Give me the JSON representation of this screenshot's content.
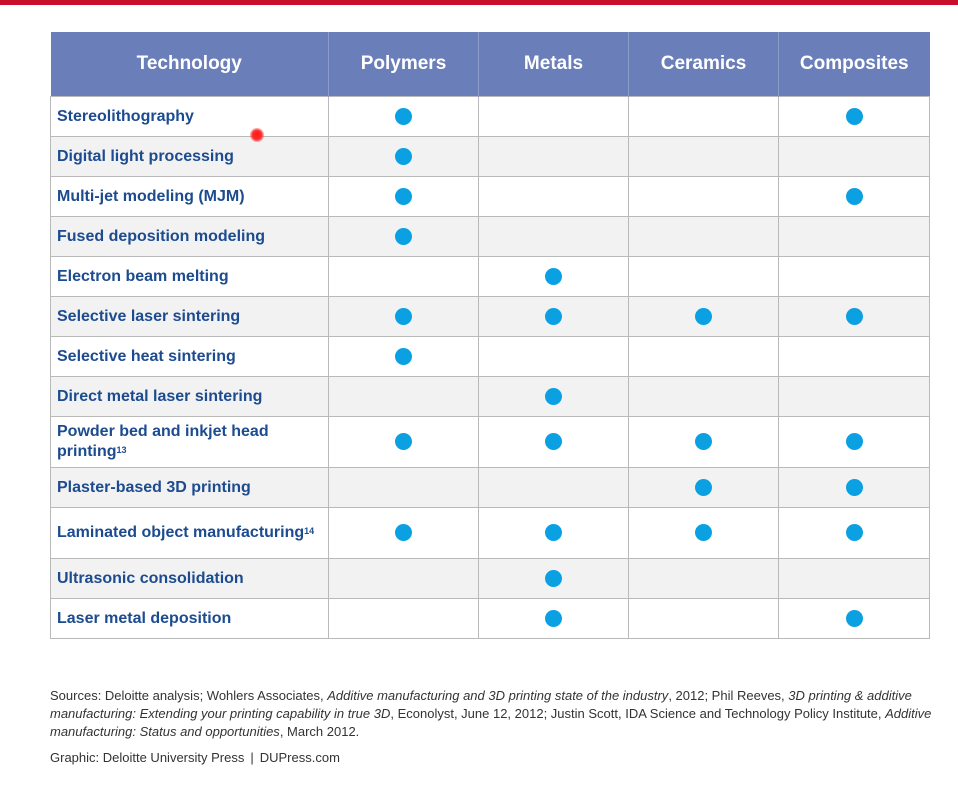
{
  "colors": {
    "top_bar": "#c8102e",
    "header_bg": "#6a7fb9",
    "technology_text": "#1c4b8f",
    "dot": "#0ba0e2",
    "alt_row_bg": "#f2f2f2"
  },
  "table": {
    "headers": [
      "Technology",
      "Polymers",
      "Metals",
      "Ceramics",
      "Composites"
    ],
    "rows": [
      {
        "technology": "Stereolithography",
        "sup": "",
        "marks": [
          true,
          false,
          false,
          true
        ]
      },
      {
        "technology": "Digital light processing",
        "sup": "",
        "marks": [
          true,
          false,
          false,
          false
        ]
      },
      {
        "technology": "Multi-jet modeling (MJM)",
        "sup": "",
        "marks": [
          true,
          false,
          false,
          true
        ]
      },
      {
        "technology": "Fused deposition modeling",
        "sup": "",
        "marks": [
          true,
          false,
          false,
          false
        ]
      },
      {
        "technology": "Electron beam melting",
        "sup": "",
        "marks": [
          false,
          true,
          false,
          false
        ]
      },
      {
        "technology": "Selective laser sintering",
        "sup": "",
        "marks": [
          true,
          true,
          true,
          true
        ]
      },
      {
        "technology": "Selective heat sintering",
        "sup": "",
        "marks": [
          true,
          false,
          false,
          false
        ]
      },
      {
        "technology": "Direct metal laser sintering",
        "sup": "",
        "marks": [
          false,
          true,
          false,
          false
        ]
      },
      {
        "technology": "Powder bed and inkjet head printing",
        "sup": "13",
        "marks": [
          true,
          true,
          true,
          true
        ]
      },
      {
        "technology": "Plaster-based 3D printing",
        "sup": "",
        "marks": [
          false,
          false,
          true,
          true
        ]
      },
      {
        "technology": "Laminated object manufacturing",
        "sup": "14",
        "marks": [
          true,
          true,
          true,
          true
        ]
      },
      {
        "technology": "Ultrasonic consolidation",
        "sup": "",
        "marks": [
          false,
          true,
          false,
          false
        ]
      },
      {
        "technology": "Laser metal deposition",
        "sup": "",
        "marks": [
          false,
          true,
          false,
          true
        ]
      }
    ]
  },
  "sources": {
    "prefix": "Sources: Deloitte analysis; Wohlers Associates, ",
    "title1": "Additive manufacturing and 3D printing state of the industry",
    "part2": ", 2012; Phil Reeves, ",
    "title2": "3D printing & additive manufacturing: Extending your printing capability in true 3D",
    "part3": ", Econolyst, June 12, 2012; Justin Scott, IDA Science and Technology Policy Institute, ",
    "title3": "Additive manufacturing: Status and opportunities",
    "suffix": ", March 2012."
  },
  "credit": {
    "graphic": "Graphic: Deloitte University Press",
    "separator": "|",
    "site": "DUPress.com"
  }
}
